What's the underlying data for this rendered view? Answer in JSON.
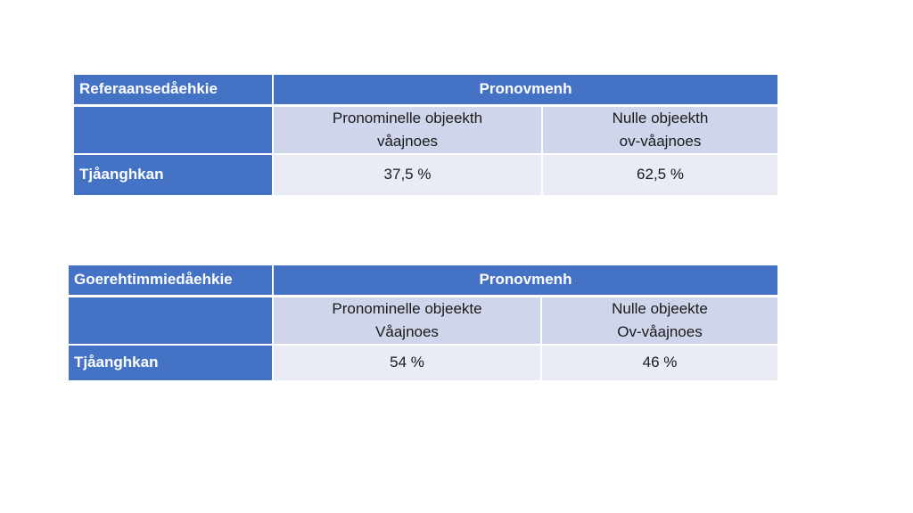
{
  "tables": [
    {
      "corner_label": "Referaansedåehkie",
      "group_header": "Pronovmenh",
      "subheaders": [
        {
          "line1": "Pronominelle objeekth",
          "line2": "våajnoes"
        },
        {
          "line1": "Nulle objeekth",
          "line2": "ov-våajnoes"
        }
      ],
      "row_label": "Tjåanghkan",
      "values": [
        "37,5 %",
        "62,5 %"
      ]
    },
    {
      "corner_label": "Goerehtimmiedåehkie",
      "group_header": "Pronovmenh",
      "subheaders": [
        {
          "line1": "Pronominelle objeekte",
          "line2": "Våajnoes"
        },
        {
          "line1": "Nulle objeekte",
          "line2": "Ov-våajnoes"
        }
      ],
      "row_label": "Tjåanghkan",
      "values": [
        "54 %",
        "46 %"
      ]
    }
  ]
}
